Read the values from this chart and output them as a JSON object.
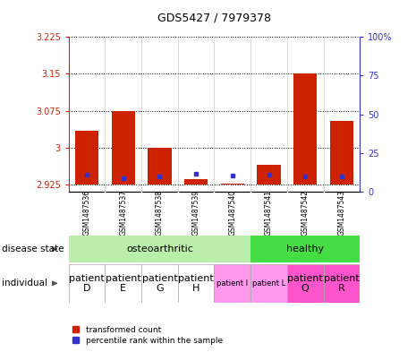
{
  "title": "GDS5427 / 7979378",
  "samples": [
    "GSM1487536",
    "GSM1487537",
    "GSM1487538",
    "GSM1487539",
    "GSM1487540",
    "GSM1487541",
    "GSM1487542",
    "GSM1487543"
  ],
  "red_values": [
    3.035,
    3.075,
    3.0,
    2.935,
    2.927,
    2.965,
    3.15,
    3.055
  ],
  "blue_values": [
    2.945,
    2.938,
    2.942,
    2.946,
    2.944,
    2.945,
    2.942,
    2.942
  ],
  "baseline": 2.925,
  "ylim_left": [
    2.91,
    3.225
  ],
  "ylim_right": [
    0,
    100
  ],
  "yticks_left": [
    2.925,
    3.0,
    3.075,
    3.15,
    3.225
  ],
  "yticks_right": [
    0,
    25,
    50,
    75,
    100
  ],
  "ytick_labels_left": [
    "2.925",
    "3",
    "3.075",
    "3.15",
    "3.225"
  ],
  "ytick_labels_right": [
    "0",
    "25",
    "50",
    "75",
    "100%"
  ],
  "red_color": "#cc2200",
  "blue_color": "#3333cc",
  "bar_width": 0.65,
  "sample_bg_color": "#cccccc",
  "osteo_color": "#bbeeaa",
  "healthy_color": "#44dd44",
  "ind_white_color": "#ffffff",
  "ind_pink_color": "#ff88ee",
  "ind_bright_pink_color": "#ff55dd",
  "legend_entries": [
    "transformed count",
    "percentile rank within the sample"
  ],
  "individual_labels": [
    "patient\nD",
    "patient\nE",
    "patient\nG",
    "patient\nH",
    "patient I",
    "patient L",
    "patient\nQ",
    "patient\nR"
  ],
  "ind_fontsize": [
    8,
    8,
    8,
    8,
    6,
    6,
    8,
    8
  ],
  "ind_colors": [
    "#ffffff",
    "#ffffff",
    "#ffffff",
    "#ffffff",
    "#ff99ee",
    "#ff99ee",
    "#ff55cc",
    "#ff55cc"
  ]
}
